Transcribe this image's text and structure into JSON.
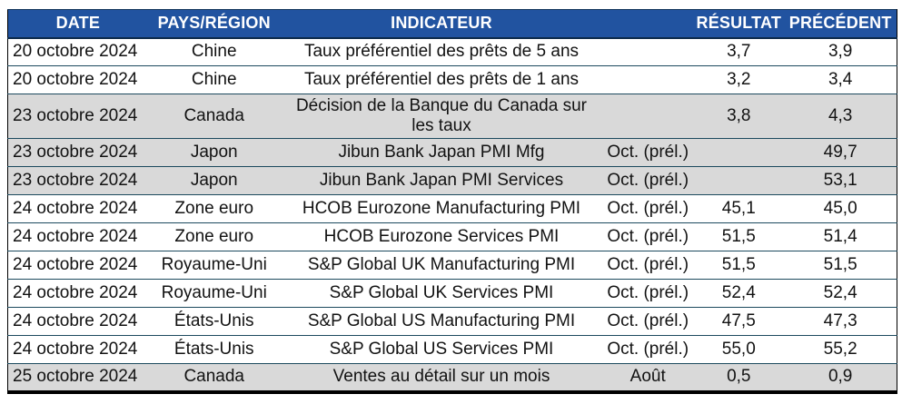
{
  "colors": {
    "header_bg": "#2153a0",
    "header_text": "#ffffff",
    "row_bg": "#ffffff",
    "row_shaded_bg": "#d9d9d9",
    "divider": "#1c4a5e",
    "outer_border": "#000000",
    "body_text": "#121212"
  },
  "chart_data": {
    "type": "table",
    "columns": [
      "DATE",
      "PAYS/RÉGION",
      "INDICATEUR",
      "",
      "RÉSULTAT",
      "PRÉCÉDENT"
    ],
    "rows": [
      [
        "20 octobre 2024",
        "Chine",
        "Taux préférentiel des prêts de 5 ans",
        "",
        "3,7",
        "3,9"
      ],
      [
        "20 octobre 2024",
        "Chine",
        "Taux préférentiel des prêts de 1 ans",
        "",
        "3,2",
        "3,4"
      ],
      [
        "23 octobre 2024",
        "Canada",
        "Décision de la Banque du Canada sur les taux",
        "",
        "3,8",
        "4,3"
      ],
      [
        "23 octobre 2024",
        "Japon",
        "Jibun Bank Japan PMI Mfg",
        "Oct. (prél.)",
        "",
        "49,7"
      ],
      [
        "23 octobre 2024",
        "Japon",
        "Jibun Bank Japan PMI Services",
        "Oct. (prél.)",
        "",
        "53,1"
      ],
      [
        "24 octobre 2024",
        "Zone euro",
        "HCOB Eurozone Manufacturing PMI",
        "Oct. (prél.)",
        "45,1",
        "45,0"
      ],
      [
        "24 octobre 2024",
        "Zone euro",
        "HCOB Eurozone Services PMI",
        "Oct. (prél.)",
        "51,5",
        "51,4"
      ],
      [
        "24 octobre 2024",
        "Royaume-Uni",
        "S&P Global UK Manufacturing PMI",
        "Oct. (prél.)",
        "51,5",
        "51,5"
      ],
      [
        "24 octobre 2024",
        "Royaume-Uni",
        "S&P Global UK Services PMI",
        "Oct. (prél.)",
        "52,4",
        "52,4"
      ],
      [
        "24 octobre 2024",
        "États-Unis",
        "S&P Global US Manufacturing PMI",
        "Oct. (prél.)",
        "47,5",
        "47,3"
      ],
      [
        "24 octobre 2024",
        "États-Unis",
        "S&P Global US Services PMI",
        "Oct. (prél.)",
        "55,0",
        "55,2"
      ],
      [
        "25 octobre 2024",
        "Canada",
        "Ventes au détail sur un mois",
        "Août",
        "0,5",
        "0,9"
      ]
    ],
    "shaded_rows": [
      2,
      3,
      4,
      11
    ]
  }
}
